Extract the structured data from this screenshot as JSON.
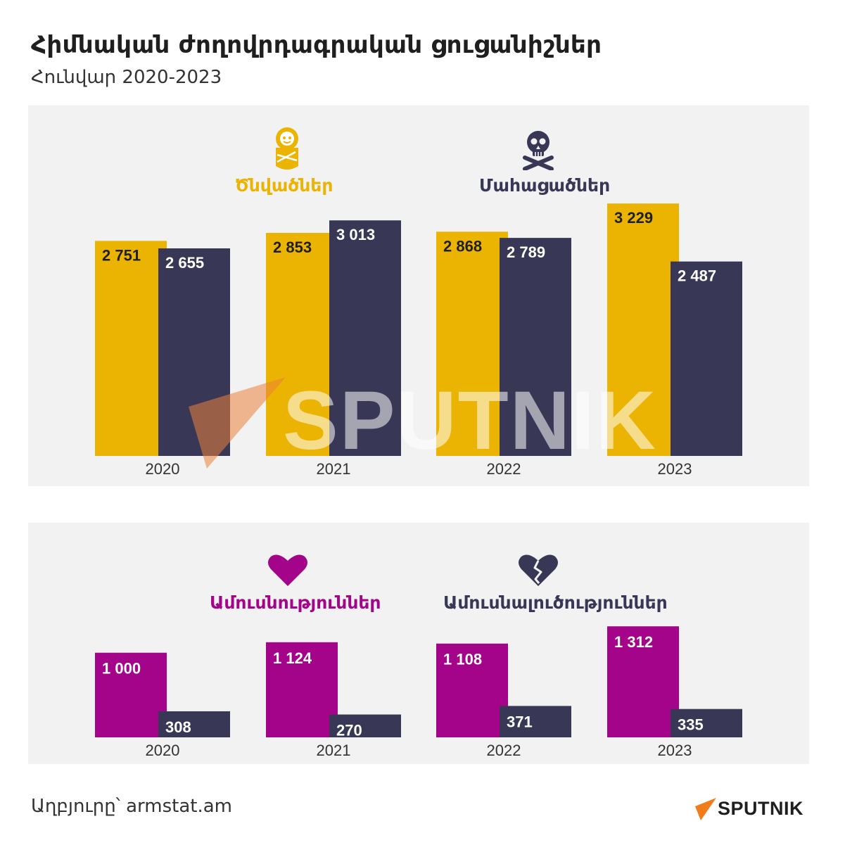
{
  "header": {
    "title": "Հիմնական ժողովրդագրական ցուցանիշներ",
    "subtitle": "Հունվար 2020-2023"
  },
  "colors": {
    "births": "#ebb302",
    "deaths": "#383856",
    "marriages": "#a4048a",
    "divorces": "#383856",
    "panel_bg": "#f2f2f2"
  },
  "legend": {
    "births_label": "Ծնվածներ",
    "births_icon": "baby-icon",
    "deaths_label": "Մահացածներ",
    "deaths_icon": "skull-crossbones-icon",
    "marriages_label": "Ամուսնություններ",
    "marriages_icon": "heart-icon",
    "divorces_label": "Ամուսնալուծություններ",
    "divorces_icon": "broken-heart-icon"
  },
  "chart_data": [
    {
      "type": "bar",
      "categories": [
        "2020",
        "2021",
        "2022",
        "2023"
      ],
      "series": [
        {
          "name": "Ծնվածներ",
          "values": [
            2751,
            2853,
            2868,
            3229
          ],
          "labels": [
            "2 751",
            "2 853",
            "2 868",
            "3 229"
          ]
        },
        {
          "name": "Մահացածներ",
          "values": [
            2655,
            3013,
            2789,
            2487
          ],
          "labels": [
            "2 655",
            "3 013",
            "2 789",
            "2 487"
          ]
        }
      ],
      "ylim": [
        0,
        3420
      ],
      "grid": false
    },
    {
      "type": "bar",
      "categories": [
        "2020",
        "2021",
        "2022",
        "2023"
      ],
      "series": [
        {
          "name": "Ամուսնություններ",
          "values": [
            1000,
            1124,
            1108,
            1312
          ],
          "labels": [
            "1 000",
            "1 124",
            "1 108",
            "1 312"
          ]
        },
        {
          "name": "Ամուսնալուծություններ",
          "values": [
            308,
            270,
            371,
            335
          ],
          "labels": [
            "308",
            "270",
            "371",
            "335"
          ]
        }
      ],
      "ylim": [
        0,
        1380
      ],
      "grid": false
    }
  ],
  "footer": {
    "source": "Աղբյուրը՝ armstat.am",
    "logo_text": "SPUTNIK",
    "watermark_text": "SPUTNIK"
  }
}
